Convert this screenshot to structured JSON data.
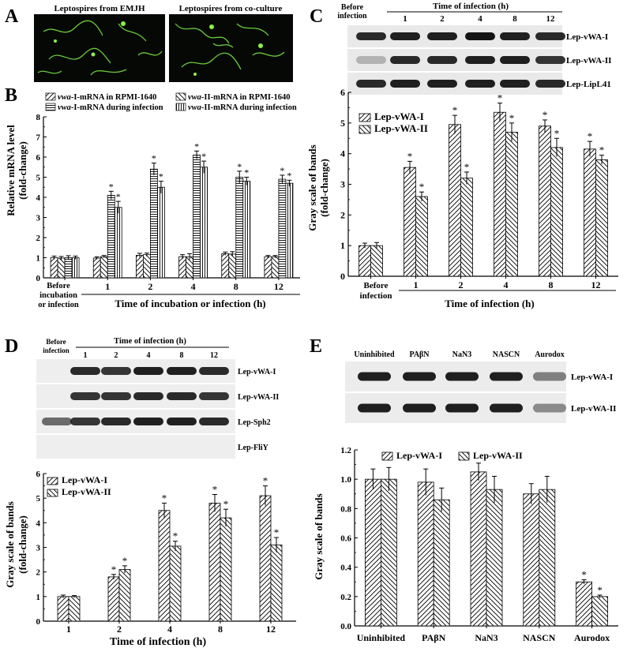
{
  "panels": {
    "A": {
      "letter": "A",
      "image_labels": [
        "Leptospires from EMJH",
        "Leptospires from co-culture"
      ]
    },
    "B": {
      "letter": "B",
      "legend": {
        "rpmi_I_italic": "vwa",
        "rpmi_I_rest": "-I-mRNA in RPMI-1640",
        "rpmi_II_italic": "vwa",
        "rpmi_II_rest": "-II-mRNA in RPMI-1640",
        "inf_I_italic": "vwa",
        "inf_I_rest": "-I-mRNA during infection",
        "inf_II_italic": "vwa",
        "inf_II_rest": "-II-mRNA during infection"
      },
      "ylabel_line1": "Relative mRNA level",
      "ylabel_line2": "(fold-change)",
      "xlabel": "Time of incubation or infection (h)",
      "before_line1": "Before",
      "before_line2": "incubation",
      "before_line3": "or infection"
    },
    "C": {
      "letter": "C",
      "blot_header": "Time of infection (h)",
      "blot_before_line1": "Before",
      "blot_before_line2": "infection",
      "blot_lanes": [
        "1",
        "2",
        "4",
        "8",
        "12"
      ],
      "blot_rows": [
        "Lep-vWA-I",
        "Lep-vWA-II",
        "Lep-LipL41"
      ],
      "ylabel_line1": "Gray scale of bands",
      "ylabel_line2": "(fold-change)",
      "xlabel": "Time of infection (h)",
      "before_line1": "Before",
      "before_line2": "infection"
    },
    "D": {
      "letter": "D",
      "blot_header": "Time of infection (h)",
      "blot_before_line1": "Before",
      "blot_before_line2": "infection",
      "blot_lanes": [
        "1",
        "2",
        "4",
        "8",
        "12"
      ],
      "blot_rows": [
        "Lep-vWA-I",
        "Lep-vWA-II",
        "Lep-Sph2",
        "Lep-FliY"
      ],
      "ylabel_line1": "Gray scale of bands",
      "ylabel_line2": "(fold-change)",
      "xlabel": "Time of infection (h)"
    },
    "E": {
      "letter": "E",
      "blot_lanes": [
        "Uninhibited",
        "PAβN",
        "NaN3",
        "NASCN",
        "Aurodox"
      ],
      "blot_rows": [
        "Lep-vWA-I",
        "Lep-vWA-II"
      ],
      "ylabel": "Gray scale of bands"
    }
  },
  "star": "*",
  "chart_data": [
    {
      "panel": "B",
      "type": "bar",
      "categories": [
        "Before incubation or infection",
        "1",
        "2",
        "4",
        "8",
        "12"
      ],
      "ylim": [
        0,
        8
      ],
      "yticks": [
        "0",
        "1",
        "2",
        "3",
        "4",
        "5",
        "6",
        "7",
        "8"
      ],
      "series": [
        {
          "name": "vwa-I-mRNA in RPMI-1640",
          "values": [
            1.0,
            0.98,
            1.12,
            1.05,
            1.2,
            1.05
          ],
          "errors": [
            0.08,
            0.06,
            0.1,
            0.1,
            0.08,
            0.06
          ]
        },
        {
          "name": "vwa-II-mRNA in RPMI-1640",
          "values": [
            0.98,
            1.05,
            1.15,
            1.05,
            1.18,
            1.05
          ],
          "errors": [
            0.08,
            0.06,
            0.08,
            0.15,
            0.12,
            0.06
          ]
        },
        {
          "name": "vwa-I-mRNA during infection",
          "values": [
            1.0,
            4.1,
            5.4,
            6.1,
            5.0,
            4.9
          ],
          "errors": [
            0.1,
            0.2,
            0.3,
            0.2,
            0.3,
            0.2
          ]
        },
        {
          "name": "vwa-II-mRNA during infection",
          "values": [
            1.0,
            3.5,
            4.5,
            5.5,
            4.8,
            4.7
          ],
          "errors": [
            0.08,
            0.3,
            0.3,
            0.3,
            0.2,
            0.15
          ]
        }
      ],
      "significant": [
        [
          false,
          false,
          false,
          false,
          false,
          false
        ],
        [
          false,
          false,
          false,
          false,
          false,
          false
        ],
        [
          false,
          true,
          true,
          true,
          true,
          true
        ],
        [
          false,
          true,
          true,
          true,
          true,
          true
        ]
      ],
      "xlabel": "Time of incubation or infection (h)",
      "ylabel": "Relative mRNA level (fold-change)"
    },
    {
      "panel": "C",
      "type": "bar",
      "categories": [
        "Before infection",
        "1",
        "2",
        "4",
        "8",
        "12"
      ],
      "ylim": [
        0,
        6
      ],
      "yticks": [
        "0",
        "1",
        "2",
        "3",
        "4",
        "5",
        "6"
      ],
      "series": [
        {
          "name": "Lep-vWA-I",
          "values": [
            1.0,
            3.55,
            4.95,
            5.35,
            4.9,
            4.15
          ],
          "errors": [
            0.08,
            0.2,
            0.3,
            0.3,
            0.2,
            0.25
          ]
        },
        {
          "name": "Lep-vWA-II",
          "values": [
            1.0,
            2.6,
            3.2,
            4.7,
            4.2,
            3.8
          ],
          "errors": [
            0.1,
            0.15,
            0.2,
            0.3,
            0.3,
            0.15
          ]
        }
      ],
      "significant": [
        [
          false,
          true,
          true,
          true,
          true,
          true
        ],
        [
          false,
          true,
          true,
          true,
          true,
          true
        ]
      ],
      "xlabel": "Time of infection (h)",
      "ylabel": "Gray scale of bands (fold-change)"
    },
    {
      "panel": "D",
      "type": "bar",
      "categories": [
        "1",
        "2",
        "4",
        "8",
        "12"
      ],
      "ylim": [
        0,
        6
      ],
      "yticks": [
        "0",
        "1",
        "2",
        "3",
        "4",
        "5",
        "6"
      ],
      "series": [
        {
          "name": "Lep-vWA-I",
          "values": [
            1.0,
            1.8,
            4.5,
            4.8,
            5.1
          ],
          "errors": [
            0.06,
            0.1,
            0.3,
            0.35,
            0.4
          ]
        },
        {
          "name": "Lep-vWA-II",
          "values": [
            1.0,
            2.1,
            3.05,
            4.2,
            3.1
          ],
          "errors": [
            0.04,
            0.15,
            0.2,
            0.35,
            0.3
          ]
        }
      ],
      "significant": [
        [
          false,
          true,
          true,
          true,
          true
        ],
        [
          false,
          true,
          true,
          true,
          true
        ]
      ],
      "xlabel": "Time of infection (h)",
      "ylabel": "Gray scale of bands (fold-change)"
    },
    {
      "panel": "E",
      "type": "bar",
      "categories": [
        "Uninhibited",
        "PAβN",
        "NaN3",
        "NASCN",
        "Aurodox"
      ],
      "ylim": [
        0,
        1.2
      ],
      "yticks": [
        "0.0",
        "0.2",
        "0.4",
        "0.6",
        "0.8",
        "1.0",
        "1.2"
      ],
      "series": [
        {
          "name": "Lep-vWA-I",
          "values": [
            1.0,
            0.98,
            1.05,
            0.9,
            0.3
          ],
          "errors": [
            0.07,
            0.09,
            0.06,
            0.07,
            0.015
          ]
        },
        {
          "name": "Lep-vWA-II",
          "values": [
            1.0,
            0.86,
            0.93,
            0.93,
            0.2
          ],
          "errors": [
            0.08,
            0.08,
            0.09,
            0.09,
            0.01
          ]
        }
      ],
      "significant": [
        [
          false,
          false,
          false,
          false,
          true
        ],
        [
          false,
          false,
          false,
          false,
          true
        ]
      ],
      "ylabel": "Gray scale of bands"
    }
  ]
}
